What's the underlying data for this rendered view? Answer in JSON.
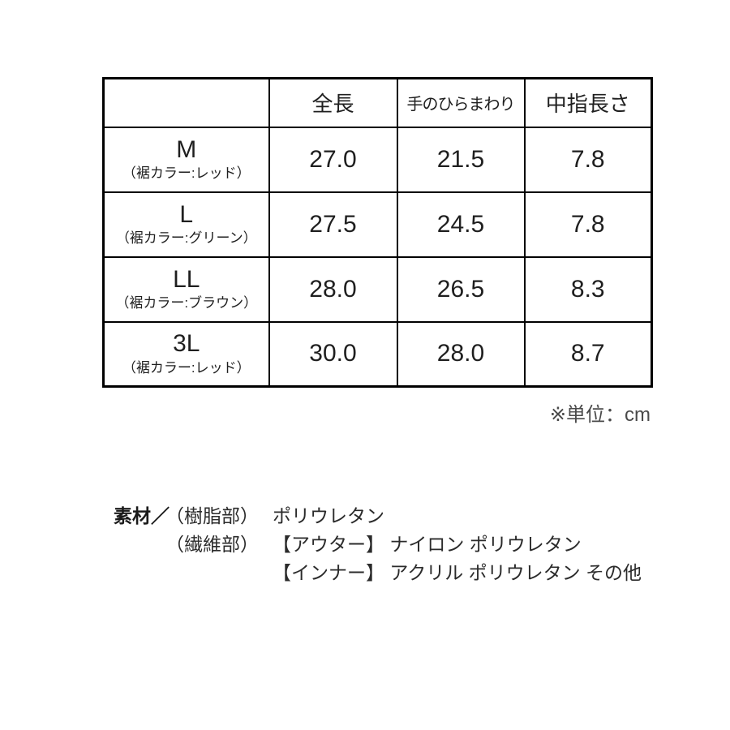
{
  "colors": {
    "background": "#ffffff",
    "border": "#000000",
    "text": "#1f1f1f",
    "muted": "#4a4a4a"
  },
  "size_table": {
    "headers": [
      "",
      "全長",
      "手のひらまわり",
      "中指長さ"
    ],
    "rows": [
      {
        "size": "M",
        "note": "（裾カラー:レッド）",
        "zencho": "27.0",
        "palm": "21.5",
        "finger": "7.8"
      },
      {
        "size": "L",
        "note": "（裾カラー:グリーン）",
        "zencho": "27.5",
        "palm": "24.5",
        "finger": "7.8"
      },
      {
        "size": "LL",
        "note": "（裾カラー:ブラウン）",
        "zencho": "28.0",
        "palm": "26.5",
        "finger": "8.3"
      },
      {
        "size": "3L",
        "note": "（裾カラー:レッド）",
        "zencho": "30.0",
        "palm": "28.0",
        "finger": "8.7"
      }
    ],
    "unit_note": "※単位：cm"
  },
  "materials": {
    "label": "素材／",
    "lines": [
      {
        "part": "（樹脂部）",
        "content": "ポリウレタン"
      },
      {
        "part": "（繊維部）",
        "content": "【アウター】 ナイロン ポリウレタン"
      },
      {
        "part": "",
        "content": "【インナー】 アクリル ポリウレタン その他"
      }
    ]
  }
}
